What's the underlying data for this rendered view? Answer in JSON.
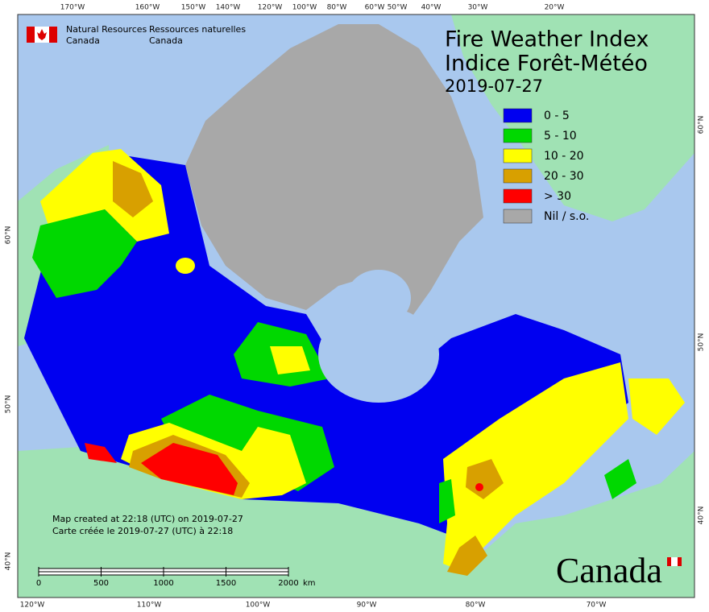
{
  "title": "Fire Weather Index",
  "title_fr": "Indice Forêt-Météo",
  "date": "2019-07-27",
  "agency_en": [
    "Natural Resources",
    "Canada"
  ],
  "agency_fr": [
    "Ressources naturelles",
    "Canada"
  ],
  "legend": [
    {
      "label": "0 - 5",
      "color": "#0000f0"
    },
    {
      "label": "5 - 10",
      "color": "#00d800"
    },
    {
      "label": "10 - 20",
      "color": "#ffff00"
    },
    {
      "label": "20 - 30",
      "color": "#d8a000"
    },
    {
      "label": "> 30",
      "color": "#ff0000"
    },
    {
      "label": "Nil / s.o.",
      "color": "#a8a8a8"
    }
  ],
  "top_labels": [
    "170°W",
    "160°W",
    "150°W",
    "140°W",
    "120°W",
    "100°W",
    "80°W",
    "60°W",
    "50°W",
    "40°W",
    "30°W",
    "20°W"
  ],
  "bottom_labels": [
    "120°W",
    "110°W",
    "100°W",
    "90°W",
    "80°W",
    "70°W"
  ],
  "left_labels": [
    "60°N",
    "50°N",
    "40°N"
  ],
  "right_labels": [
    "60°N",
    "50°N",
    "40°N"
  ],
  "credit": [
    "Map created at 22:18 (UTC) on 2019-07-27",
    "Carte créée le 2019-07-27 (UTC) à 22:18"
  ],
  "scale": {
    "ticks": [
      0,
      500,
      1000,
      1500,
      2000
    ],
    "unit": "km"
  },
  "wordmark": "Canada"
}
